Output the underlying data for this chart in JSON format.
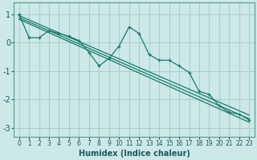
{
  "xlabel": "Humidex (Indice chaleur)",
  "background_color": "#cce8e8",
  "grid_color": "#aacfcf",
  "line_color": "#1a7a6e",
  "xlim": [
    -0.5,
    23.5
  ],
  "ylim": [
    -3.3,
    1.4
  ],
  "yticks": [
    -3,
    -2,
    -1,
    0,
    1
  ],
  "xticks": [
    0,
    1,
    2,
    3,
    4,
    5,
    6,
    7,
    8,
    9,
    10,
    11,
    12,
    13,
    14,
    15,
    16,
    17,
    18,
    19,
    20,
    21,
    22,
    23
  ],
  "data_x": [
    0,
    1,
    2,
    3,
    4,
    5,
    6,
    7,
    8,
    9,
    10,
    11,
    12,
    13,
    14,
    15,
    16,
    17,
    18,
    19,
    20,
    21,
    22,
    23
  ],
  "data_y": [
    1.0,
    0.18,
    0.17,
    0.42,
    0.32,
    0.22,
    0.07,
    -0.35,
    -0.82,
    -0.55,
    -0.12,
    0.55,
    0.32,
    -0.42,
    -0.62,
    -0.62,
    -0.82,
    -1.05,
    -1.72,
    -1.82,
    -2.22,
    -2.45,
    -2.52,
    -2.72
  ],
  "regression_lines": [
    {
      "x0": 0,
      "x1": 23,
      "y0": 0.95,
      "y1": -2.55
    },
    {
      "x0": 0,
      "x1": 23,
      "y0": 0.88,
      "y1": -2.68
    },
    {
      "x0": 0,
      "x1": 23,
      "y0": 0.82,
      "y1": -2.8
    }
  ],
  "spine_color": "#5a9a8a"
}
